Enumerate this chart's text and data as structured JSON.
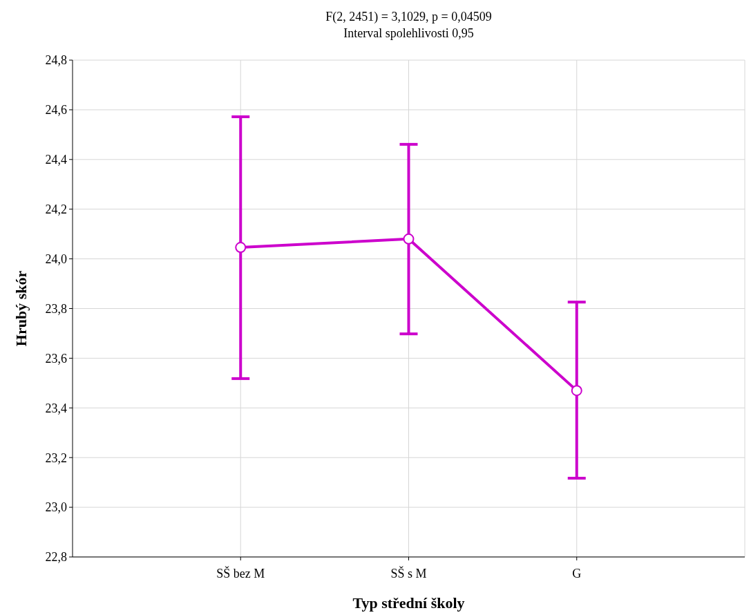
{
  "chart_data": {
    "type": "line",
    "title": "F(2, 2451) = 3,1029, p = 0,04509",
    "subtitle": "Interval spolehlivosti 0,95",
    "xlabel": "Typ střední školy",
    "ylabel": "Hrubý skór",
    "categories": [
      "SŠ bez M",
      "SŠ s M",
      "G"
    ],
    "series": [
      {
        "color": "#cc00cc",
        "values": [
          24.046,
          24.08,
          23.47
        ],
        "errors": [
          [
            23.518,
            24.572
          ],
          [
            23.698,
            24.461
          ],
          [
            23.117,
            23.826
          ]
        ]
      }
    ],
    "ylim": [
      22.8,
      24.8
    ],
    "yticks": [
      {
        "value": 22.8,
        "label": "22,8"
      },
      {
        "value": 23.0,
        "label": "23,0"
      },
      {
        "value": 23.2,
        "label": "23,2"
      },
      {
        "value": 23.4,
        "label": "23,4"
      },
      {
        "value": 23.6,
        "label": "23,6"
      },
      {
        "value": 23.8,
        "label": "23,8"
      },
      {
        "value": 24.0,
        "label": "24,0"
      },
      {
        "value": 24.2,
        "label": "24,2"
      },
      {
        "value": 24.4,
        "label": "24,4"
      },
      {
        "value": 24.6,
        "label": "24,6"
      },
      {
        "value": 24.8,
        "label": "24,8"
      }
    ],
    "grid": true,
    "marker": "circle",
    "line_style": "solid"
  }
}
